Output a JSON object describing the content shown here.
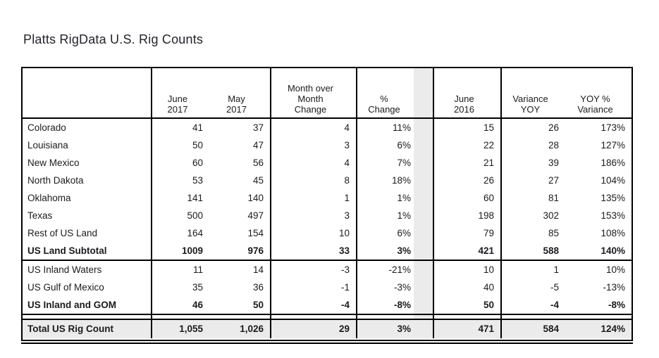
{
  "title": "Platts RigData U.S. Rig Counts",
  "colors": {
    "row_shade": "#ebebeb",
    "border": "#000000",
    "text": "#1b1b1f",
    "background": "#ffffff"
  },
  "table": {
    "header": {
      "label": "",
      "june2017": "June\n2017",
      "may2017": "May\n2017",
      "mom": "Month over\nMonth\nChange",
      "pct": "%\nChange",
      "spacer": "",
      "june2016": "June\n2016",
      "var_yoy": "Variance\nYOY",
      "yoy_pct": "YOY %\nVariance"
    },
    "groups": [
      {
        "name": "us-land",
        "rows": [
          {
            "label": "Colorado",
            "june2017": "41",
            "may2017": "37",
            "mom": "4",
            "pct": "11%",
            "june2016": "15",
            "var_yoy": "26",
            "yoy_pct": "173%",
            "bold": false
          },
          {
            "label": "Louisiana",
            "june2017": "50",
            "may2017": "47",
            "mom": "3",
            "pct": "6%",
            "june2016": "22",
            "var_yoy": "28",
            "yoy_pct": "127%",
            "bold": false
          },
          {
            "label": "New Mexico",
            "june2017": "60",
            "may2017": "56",
            "mom": "4",
            "pct": "7%",
            "june2016": "21",
            "var_yoy": "39",
            "yoy_pct": "186%",
            "bold": false
          },
          {
            "label": "North Dakota",
            "june2017": "53",
            "may2017": "45",
            "mom": "8",
            "pct": "18%",
            "june2016": "26",
            "var_yoy": "27",
            "yoy_pct": "104%",
            "bold": false
          },
          {
            "label": "Oklahoma",
            "june2017": "141",
            "may2017": "140",
            "mom": "1",
            "pct": "1%",
            "june2016": "60",
            "var_yoy": "81",
            "yoy_pct": "135%",
            "bold": false
          },
          {
            "label": "Texas",
            "june2017": "500",
            "may2017": "497",
            "mom": "3",
            "pct": "1%",
            "june2016": "198",
            "var_yoy": "302",
            "yoy_pct": "153%",
            "bold": false
          },
          {
            "label": "Rest of US Land",
            "june2017": "164",
            "may2017": "154",
            "mom": "10",
            "pct": "6%",
            "june2016": "79",
            "var_yoy": "85",
            "yoy_pct": "108%",
            "bold": false
          },
          {
            "label": "US Land Subtotal",
            "june2017": "1009",
            "may2017": "976",
            "mom": "33",
            "pct": "3%",
            "june2016": "421",
            "var_yoy": "588",
            "yoy_pct": "140%",
            "bold": true
          }
        ]
      },
      {
        "name": "water",
        "rows": [
          {
            "label": "US Inland Waters",
            "june2017": "11",
            "may2017": "14",
            "mom": "-3",
            "pct": "-21%",
            "june2016": "10",
            "var_yoy": "1",
            "yoy_pct": "10%",
            "bold": false
          },
          {
            "label": "US Gulf of Mexico",
            "june2017": "35",
            "may2017": "36",
            "mom": "-1",
            "pct": "-3%",
            "june2016": "40",
            "var_yoy": "-5",
            "yoy_pct": "-13%",
            "bold": false
          },
          {
            "label": "US Inland and GOM",
            "june2017": "46",
            "may2017": "50",
            "mom": "-4",
            "pct": "-8%",
            "june2016": "50",
            "var_yoy": "-4",
            "yoy_pct": "-8%",
            "bold": true
          }
        ]
      },
      {
        "name": "total",
        "rows": [
          {
            "label": "Total US Rig Count",
            "june2017": "1,055",
            "may2017": "1,026",
            "mom": "29",
            "pct": "3%",
            "june2016": "471",
            "var_yoy": "584",
            "yoy_pct": "124%",
            "bold": true
          }
        ]
      }
    ]
  }
}
